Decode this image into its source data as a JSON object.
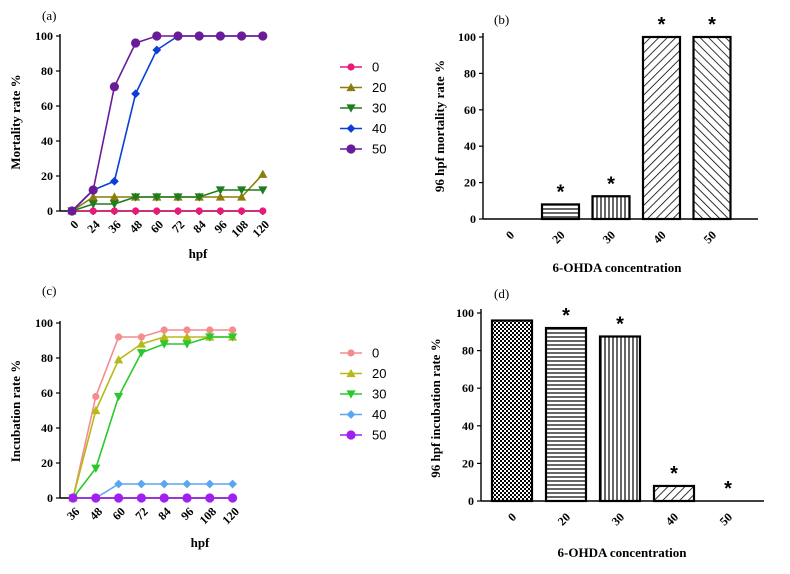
{
  "colors": {
    "panel_a": {
      "0": "#e8197a",
      "20": "#8b7d0a",
      "30": "#1f7d1f",
      "40": "#0b3fd6",
      "50": "#6a1b9a"
    },
    "panel_c": {
      "0": "#f58c8c",
      "20": "#b8b81a",
      "30": "#2bc82b",
      "40": "#5aa6f0",
      "50": "#a020f0"
    }
  },
  "chart_data": [
    {
      "panel": "(a)",
      "type": "line",
      "xlabel": "hpf",
      "ylabel": "Mortality rate %",
      "x": [
        0,
        24,
        36,
        48,
        60,
        72,
        84,
        96,
        108,
        120
      ],
      "ylim": [
        0,
        100
      ],
      "yticks": [
        0,
        20,
        40,
        60,
        80,
        100
      ],
      "legend_position": "right",
      "series": [
        {
          "name": "0",
          "marker": "circle",
          "values": [
            0,
            0,
            0,
            0,
            0,
            0,
            0,
            0,
            0,
            0
          ]
        },
        {
          "name": "20",
          "marker": "triangle-up",
          "values": [
            0,
            8,
            8,
            8,
            8,
            8,
            8,
            8,
            8,
            21
          ]
        },
        {
          "name": "30",
          "marker": "triangle-down",
          "values": [
            0,
            4,
            4,
            8,
            8,
            8,
            8,
            12,
            12,
            12
          ]
        },
        {
          "name": "40",
          "marker": "diamond",
          "values": [
            0,
            12,
            17,
            67,
            92,
            100,
            100,
            100,
            100,
            100
          ]
        },
        {
          "name": "50",
          "marker": "circle-large",
          "values": [
            0,
            12,
            71,
            96,
            100,
            100,
            100,
            100,
            100,
            100
          ]
        }
      ]
    },
    {
      "panel": "(b)",
      "type": "bar",
      "xlabel": "6-OHDA concentration",
      "ylabel": "96 hpf mortality rate %",
      "categories": [
        "0",
        "20",
        "30",
        "40",
        "50"
      ],
      "values": [
        0,
        8,
        12.5,
        100,
        100
      ],
      "significance": [
        "",
        "*",
        "*",
        "*",
        "*"
      ],
      "patterns": [
        "none",
        "hline",
        "vline",
        "diag",
        "backdiag"
      ],
      "ylim": [
        0,
        100
      ],
      "yticks": [
        0,
        20,
        40,
        60,
        80,
        100
      ]
    },
    {
      "panel": "(c)",
      "type": "line",
      "xlabel": "hpf",
      "ylabel": "Incubation rate %",
      "x": [
        36,
        48,
        60,
        72,
        84,
        96,
        108,
        120
      ],
      "ylim": [
        0,
        100
      ],
      "yticks": [
        0,
        20,
        40,
        60,
        80,
        100
      ],
      "legend_position": "right",
      "series": [
        {
          "name": "0",
          "marker": "circle",
          "values": [
            0,
            58,
            92,
            92,
            96,
            96,
            96,
            96
          ]
        },
        {
          "name": "20",
          "marker": "triangle-up",
          "values": [
            0,
            50,
            79,
            88,
            92,
            92,
            92,
            92
          ]
        },
        {
          "name": "30",
          "marker": "triangle-down",
          "values": [
            0,
            17,
            58,
            83,
            88,
            88,
            92,
            92
          ]
        },
        {
          "name": "40",
          "marker": "diamond",
          "values": [
            0,
            0,
            8,
            8,
            8,
            8,
            8,
            8
          ]
        },
        {
          "name": "50",
          "marker": "circle-large",
          "values": [
            0,
            0,
            0,
            0,
            0,
            0,
            0,
            0
          ]
        }
      ]
    },
    {
      "panel": "(d)",
      "type": "bar",
      "xlabel": "6-OHDA concentration",
      "ylabel": "96 hpf incubation rate %",
      "categories": [
        "0",
        "20",
        "30",
        "40",
        "50"
      ],
      "values": [
        96,
        92,
        87.5,
        8,
        0
      ],
      "significance": [
        "",
        "*",
        "*",
        "*",
        "*"
      ],
      "patterns": [
        "checker",
        "hline",
        "vline",
        "diag",
        "backdiag"
      ],
      "ylim": [
        0,
        100
      ],
      "yticks": [
        0,
        20,
        40,
        60,
        80,
        100
      ]
    }
  ]
}
